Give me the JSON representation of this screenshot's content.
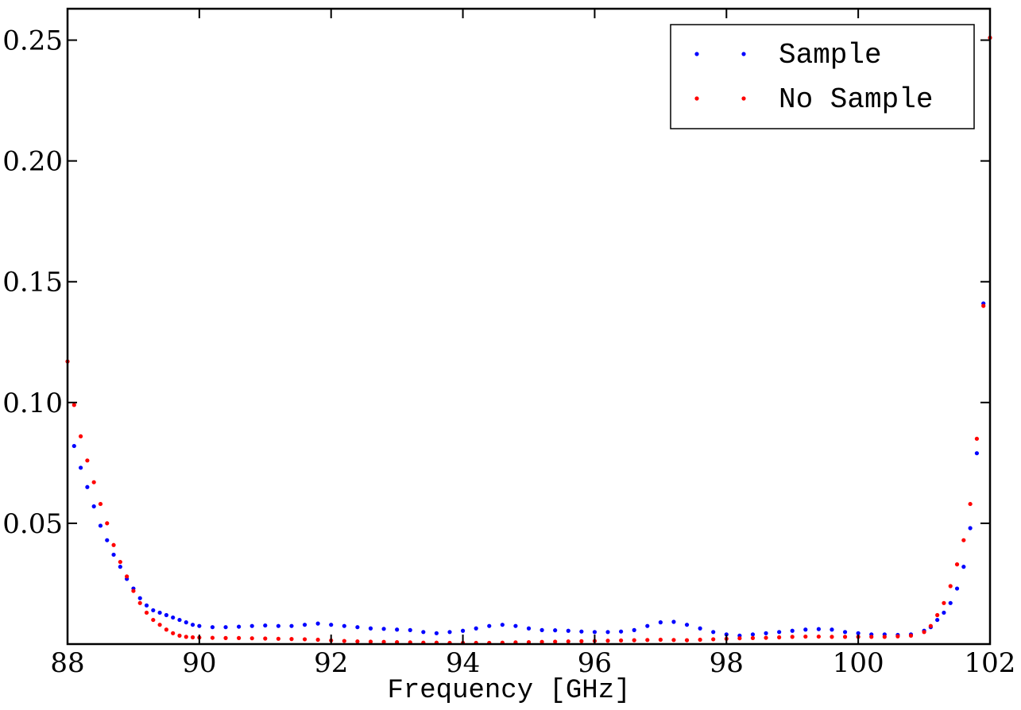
{
  "chart_data": {
    "type": "scatter",
    "title": "",
    "xlabel": "Frequency [GHz]",
    "ylabel": "",
    "xlim": [
      88,
      102
    ],
    "ylim": [
      0.0,
      0.263
    ],
    "x_ticks": [
      88,
      90,
      92,
      94,
      96,
      98,
      100,
      102
    ],
    "x_tick_labels": [
      "88",
      "90",
      "92",
      "94",
      "96",
      "98",
      "100",
      "102"
    ],
    "y_ticks": [
      0.05,
      0.1,
      0.15,
      0.2,
      0.25
    ],
    "y_tick_labels": [
      "0.05",
      "0.10",
      "0.15",
      "0.20",
      "0.25"
    ],
    "legend_position": "top-right",
    "grid": false,
    "series": [
      {
        "name": "Sample",
        "color": "#0000ff",
        "points": [
          [
            88.1,
            0.082
          ],
          [
            88.2,
            0.073
          ],
          [
            88.3,
            0.065
          ],
          [
            88.4,
            0.057
          ],
          [
            88.5,
            0.049
          ],
          [
            88.6,
            0.043
          ],
          [
            88.7,
            0.037
          ],
          [
            88.8,
            0.032
          ],
          [
            88.9,
            0.027
          ],
          [
            89.0,
            0.023
          ],
          [
            89.1,
            0.019
          ],
          [
            89.2,
            0.016
          ],
          [
            89.3,
            0.014
          ],
          [
            89.4,
            0.013
          ],
          [
            89.5,
            0.012
          ],
          [
            89.6,
            0.011
          ],
          [
            89.7,
            0.01
          ],
          [
            89.8,
            0.009
          ],
          [
            89.9,
            0.008
          ],
          [
            90.0,
            0.0075
          ],
          [
            90.2,
            0.007
          ],
          [
            90.4,
            0.007
          ],
          [
            90.6,
            0.0072
          ],
          [
            90.8,
            0.0075
          ],
          [
            91.0,
            0.0077
          ],
          [
            91.2,
            0.0075
          ],
          [
            91.4,
            0.0075
          ],
          [
            91.6,
            0.008
          ],
          [
            91.8,
            0.0085
          ],
          [
            92.0,
            0.008
          ],
          [
            92.2,
            0.0075
          ],
          [
            92.4,
            0.007
          ],
          [
            92.6,
            0.0065
          ],
          [
            92.8,
            0.0063
          ],
          [
            93.0,
            0.006
          ],
          [
            93.2,
            0.0058
          ],
          [
            93.4,
            0.005
          ],
          [
            93.6,
            0.0045
          ],
          [
            93.8,
            0.005
          ],
          [
            94.0,
            0.0055
          ],
          [
            94.2,
            0.0065
          ],
          [
            94.4,
            0.0075
          ],
          [
            94.6,
            0.008
          ],
          [
            94.8,
            0.0075
          ],
          [
            95.0,
            0.0065
          ],
          [
            95.2,
            0.0058
          ],
          [
            95.4,
            0.0057
          ],
          [
            95.6,
            0.0055
          ],
          [
            95.8,
            0.0052
          ],
          [
            96.0,
            0.005
          ],
          [
            96.2,
            0.005
          ],
          [
            96.4,
            0.0052
          ],
          [
            96.6,
            0.0058
          ],
          [
            96.8,
            0.0075
          ],
          [
            97.0,
            0.009
          ],
          [
            97.2,
            0.0092
          ],
          [
            97.4,
            0.008
          ],
          [
            97.6,
            0.0065
          ],
          [
            97.8,
            0.005
          ],
          [
            98.0,
            0.004
          ],
          [
            98.2,
            0.0035
          ],
          [
            98.4,
            0.004
          ],
          [
            98.6,
            0.0045
          ],
          [
            98.8,
            0.005
          ],
          [
            99.0,
            0.0055
          ],
          [
            99.2,
            0.006
          ],
          [
            99.4,
            0.0062
          ],
          [
            99.6,
            0.006
          ],
          [
            99.8,
            0.005
          ],
          [
            100.0,
            0.0045
          ],
          [
            100.2,
            0.004
          ],
          [
            100.4,
            0.004
          ],
          [
            100.6,
            0.0038
          ],
          [
            100.8,
            0.004
          ],
          [
            101.0,
            0.0055
          ],
          [
            101.1,
            0.007
          ],
          [
            101.2,
            0.01
          ],
          [
            101.3,
            0.013
          ],
          [
            101.4,
            0.017
          ],
          [
            101.5,
            0.023
          ],
          [
            101.6,
            0.032
          ],
          [
            101.7,
            0.048
          ],
          [
            101.8,
            0.079
          ],
          [
            101.9,
            0.141
          ]
        ]
      },
      {
        "name": "No Sample",
        "color": "#ff0000",
        "points": [
          [
            88.0,
            0.117
          ],
          [
            88.1,
            0.099
          ],
          [
            88.2,
            0.086
          ],
          [
            88.3,
            0.076
          ],
          [
            88.4,
            0.067
          ],
          [
            88.5,
            0.058
          ],
          [
            88.6,
            0.05
          ],
          [
            88.7,
            0.041
          ],
          [
            88.8,
            0.034
          ],
          [
            88.9,
            0.028
          ],
          [
            89.0,
            0.022
          ],
          [
            89.1,
            0.017
          ],
          [
            89.2,
            0.013
          ],
          [
            89.3,
            0.01
          ],
          [
            89.4,
            0.008
          ],
          [
            89.5,
            0.006
          ],
          [
            89.6,
            0.0045
          ],
          [
            89.7,
            0.0035
          ],
          [
            89.8,
            0.003
          ],
          [
            89.9,
            0.0028
          ],
          [
            90.0,
            0.0027
          ],
          [
            90.2,
            0.0026
          ],
          [
            90.4,
            0.0025
          ],
          [
            90.6,
            0.0025
          ],
          [
            90.8,
            0.0024
          ],
          [
            91.0,
            0.0023
          ],
          [
            91.2,
            0.0022
          ],
          [
            91.4,
            0.0021
          ],
          [
            91.6,
            0.002
          ],
          [
            91.8,
            0.0018
          ],
          [
            92.0,
            0.0015
          ],
          [
            92.2,
            0.0013
          ],
          [
            92.4,
            0.0011
          ],
          [
            92.6,
            0.001
          ],
          [
            92.8,
            0.0009
          ],
          [
            93.0,
            0.0008
          ],
          [
            93.2,
            0.0007
          ],
          [
            93.4,
            0.0006
          ],
          [
            93.6,
            0.0006
          ],
          [
            93.8,
            0.0005
          ],
          [
            94.0,
            0.0005
          ],
          [
            94.2,
            0.0005
          ],
          [
            94.4,
            0.0005
          ],
          [
            94.6,
            0.0006
          ],
          [
            94.8,
            0.0007
          ],
          [
            95.0,
            0.0008
          ],
          [
            95.2,
            0.0009
          ],
          [
            95.4,
            0.001
          ],
          [
            95.6,
            0.0011
          ],
          [
            95.8,
            0.0012
          ],
          [
            96.0,
            0.0013
          ],
          [
            96.2,
            0.0014
          ],
          [
            96.4,
            0.0015
          ],
          [
            96.6,
            0.0016
          ],
          [
            96.8,
            0.0017
          ],
          [
            97.0,
            0.0018
          ],
          [
            97.2,
            0.0017
          ],
          [
            97.4,
            0.0016
          ],
          [
            97.6,
            0.0018
          ],
          [
            97.8,
            0.002
          ],
          [
            98.0,
            0.0022
          ],
          [
            98.2,
            0.0024
          ],
          [
            98.4,
            0.0025
          ],
          [
            98.6,
            0.0026
          ],
          [
            98.8,
            0.0028
          ],
          [
            99.0,
            0.003
          ],
          [
            99.2,
            0.0031
          ],
          [
            99.4,
            0.0031
          ],
          [
            99.6,
            0.003
          ],
          [
            99.8,
            0.003
          ],
          [
            100.0,
            0.003
          ],
          [
            100.2,
            0.003
          ],
          [
            100.4,
            0.003
          ],
          [
            100.6,
            0.0032
          ],
          [
            100.8,
            0.0035
          ],
          [
            101.0,
            0.005
          ],
          [
            101.1,
            0.0075
          ],
          [
            101.2,
            0.012
          ],
          [
            101.3,
            0.017
          ],
          [
            101.4,
            0.024
          ],
          [
            101.5,
            0.033
          ],
          [
            101.6,
            0.043
          ],
          [
            101.7,
            0.058
          ],
          [
            101.8,
            0.085
          ],
          [
            101.9,
            0.14
          ],
          [
            102.0,
            0.251
          ]
        ]
      }
    ]
  }
}
